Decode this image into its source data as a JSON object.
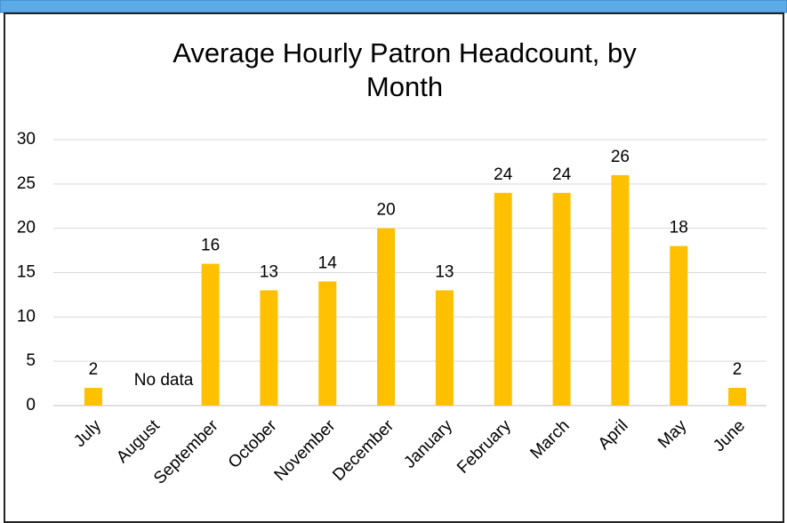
{
  "chart_data": {
    "type": "bar",
    "title": "Average Hourly Patron Headcount, by Month",
    "categories": [
      "July",
      "August",
      "September",
      "October",
      "November",
      "December",
      "January",
      "February",
      "March",
      "April",
      "May",
      "June"
    ],
    "values": [
      2,
      null,
      16,
      13,
      14,
      20,
      13,
      24,
      24,
      26,
      18,
      2
    ],
    "color": "#ffc000",
    "annotation": "No data",
    "ylim": [
      0,
      30
    ],
    "yticks": [
      0,
      5,
      10,
      15,
      20,
      25,
      30
    ],
    "grid": true
  }
}
